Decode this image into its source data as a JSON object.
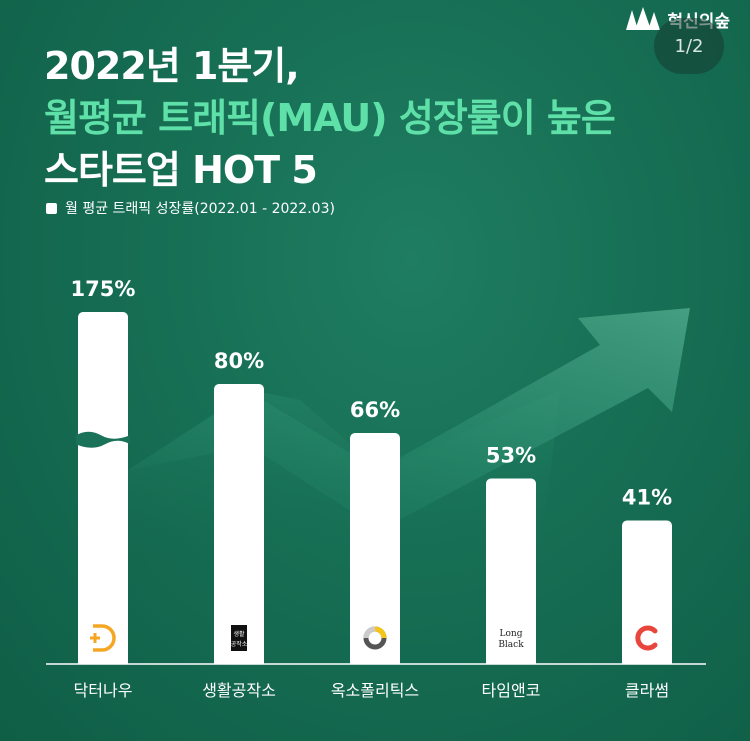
{
  "brand": {
    "name": "혁신의숲",
    "icon": "tree-icon"
  },
  "page_indicator": "1/2",
  "title": {
    "line1": "2022년 1분기,",
    "line2": "월평균 트래픽(MAU) 성장률이 높은",
    "line3": "스타트업 HOT 5"
  },
  "colors": {
    "title_white": "#ffffff",
    "title_accent": "#5fe0a8",
    "background": "#166e53",
    "bar": "#ffffff"
  },
  "legend": {
    "label": "월 평균 트래픽 성장률(2022.01 - 2022.03)"
  },
  "chart_data": {
    "type": "bar",
    "title": "2022년 1분기, 월평균 트래픽(MAU) 성장률이 높은 스타트업 HOT 5",
    "categories": [
      "닥터나우",
      "생활공작소",
      "옥소폴리틱스",
      "타임앤코",
      "클라썸"
    ],
    "values": [
      175,
      80,
      66,
      53,
      41
    ],
    "value_labels": [
      "175%",
      "80%",
      "66%",
      "53%",
      "41%"
    ],
    "unit": "%",
    "series": [
      {
        "name": "월 평균 트래픽 성장률(2022.01 - 2022.03)",
        "values": [
          175,
          80,
          66,
          53,
          41
        ]
      }
    ],
    "axis_break": {
      "bar_index": 0
    },
    "logos": [
      {
        "icon": "doctornow-logo-icon"
      },
      {
        "icon": "saenghwal-logo-icon",
        "text": "생활 공작소"
      },
      {
        "icon": "oxopolitics-logo-icon"
      },
      {
        "icon": "longblack-logo-icon",
        "text": "Long Black"
      },
      {
        "icon": "classum-logo-icon"
      }
    ],
    "legend_position": "top-left",
    "grid": false
  }
}
